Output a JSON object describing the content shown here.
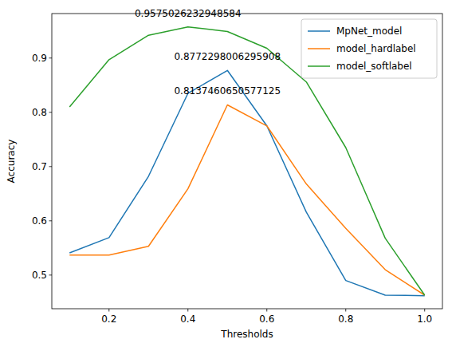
{
  "chart_data": {
    "type": "line",
    "x_label": "Thresholds",
    "y_label": "Accuracy",
    "x": [
      0.1,
      0.2,
      0.3,
      0.4,
      0.5,
      0.6,
      0.7,
      0.8,
      0.9,
      1.0
    ],
    "series": [
      {
        "name": "MpNet_model",
        "color": "#1f77b4",
        "values": [
          0.541,
          0.569,
          0.682,
          0.835,
          0.8772,
          0.775,
          0.616,
          0.49,
          0.463,
          0.462
        ]
      },
      {
        "name": "model_hardlabel",
        "color": "#ff7f0e",
        "values": [
          0.537,
          0.537,
          0.553,
          0.659,
          0.8137,
          0.775,
          0.668,
          0.586,
          0.51,
          0.463
        ]
      },
      {
        "name": "model_softlabel",
        "color": "#2ca02c",
        "values": [
          0.81,
          0.897,
          0.942,
          0.9575,
          0.949,
          0.918,
          0.856,
          0.735,
          0.568,
          0.463
        ]
      }
    ],
    "annotations": [
      {
        "text": "0.9575026232948584",
        "x": 0.4,
        "y": 0.982
      },
      {
        "text": "0.8772298006295908",
        "x": 0.5,
        "y": 0.903
      },
      {
        "text": "0.8137460650577125",
        "x": 0.5,
        "y": 0.839
      }
    ],
    "xlim": [
      0.055,
      1.045
    ],
    "ylim": [
      0.438,
      0.982
    ],
    "xticks": [
      0.2,
      0.4,
      0.6,
      0.8,
      {
        "value": 1,
        "label": "1.0"
      }
    ],
    "yticks": [
      0.5,
      0.6,
      0.7,
      0.8,
      0.9
    ],
    "legend": "upper right",
    "grid": false
  }
}
